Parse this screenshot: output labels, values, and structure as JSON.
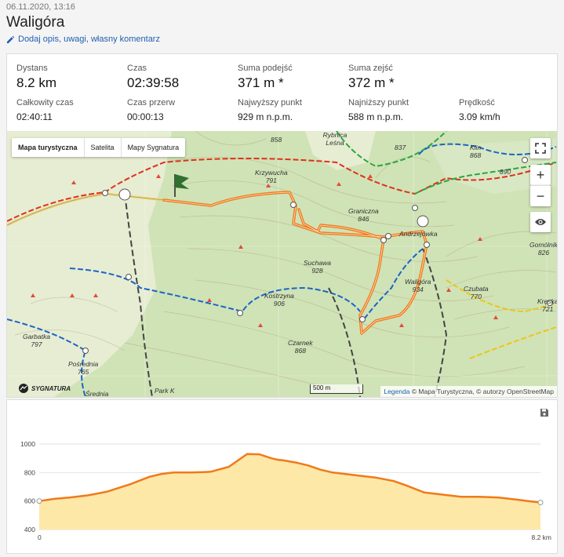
{
  "header": {
    "datetime": "06.11.2020, 13:16",
    "title": "Waligóra",
    "add_comment": "Dodaj opis, uwagi, własny komentarz"
  },
  "stats": {
    "distance": {
      "label": "Dystans",
      "value": "8.2 km"
    },
    "time": {
      "label": "Czas",
      "value": "02:39:58"
    },
    "ascent": {
      "label": "Suma podejść",
      "value": "371 m *"
    },
    "descent": {
      "label": "Suma zejść",
      "value": "372 m *"
    },
    "total_time": {
      "label": "Całkowity czas",
      "value": "02:40:11"
    },
    "break_time": {
      "label": "Czas przerw",
      "value": "00:00:13"
    },
    "highest": {
      "label": "Najwyższy punkt",
      "value": "929 m n.p.m."
    },
    "lowest": {
      "label": "Najniższy punkt",
      "value": "588 m n.p.m."
    },
    "speed": {
      "label": "Prędkość",
      "value": "3.09 km/h"
    }
  },
  "map": {
    "types": [
      "Mapa turystyczna",
      "Satelita",
      "Mapy Sygnatura"
    ],
    "active_type": "Mapa turystyczna",
    "controls": {
      "zoom_in": "+",
      "zoom_out": "−"
    },
    "scale": "500 m",
    "attribution_link": "Legenda",
    "attribution_text": "© Mapa Turystyczna, © autorzy OpenStreetMap",
    "watermark": "SYGNATURA",
    "places": [
      {
        "name": "Krzywucha",
        "elev": "791"
      },
      {
        "name": "Graniczna",
        "elev": "846"
      },
      {
        "name": "Suchawa",
        "elev": "928"
      },
      {
        "name": "Kostrzyna",
        "elev": "906"
      },
      {
        "name": "Waligóra",
        "elev": "934"
      },
      {
        "name": "Czarnek",
        "elev": "868"
      },
      {
        "name": "Czubata",
        "elev": "770"
      },
      {
        "name": "Garbatka",
        "elev": "797"
      },
      {
        "name": "Pośrednia",
        "elev": "765"
      },
      {
        "name": "Średnia",
        "elev": ""
      },
      {
        "name": "Klin",
        "elev": "868"
      },
      {
        "name": "Gomólnik",
        "elev": "826"
      },
      {
        "name": "Kręska",
        "elev": "721"
      },
      {
        "name": "Rybnica Leśna",
        "elev": ""
      },
      {
        "name": "",
        "elev": "858"
      },
      {
        "name": "",
        "elev": "837"
      },
      {
        "name": "",
        "elev": "890"
      },
      {
        "name": "Andrzejówka",
        "elev": ""
      },
      {
        "name": "Park K",
        "elev": ""
      }
    ],
    "track_color": "#f07a1a"
  },
  "chart_data": {
    "type": "area",
    "title": "",
    "xlabel": "",
    "ylabel": "",
    "x_tick_labels": [
      "0",
      "8.2 km"
    ],
    "y_ticks": [
      400,
      600,
      800,
      1000
    ],
    "ylim": [
      400,
      1000
    ],
    "xlim": [
      0,
      8.2
    ],
    "grid": true,
    "line_color": "#f07a1a",
    "fill_color": "#fde8a8",
    "series": [
      {
        "x": [
          0,
          0.25,
          0.5,
          0.8,
          1.1,
          1.5,
          1.8,
          2.0,
          2.2,
          2.5,
          2.8,
          3.1,
          3.4,
          3.6,
          3.8,
          3.9,
          4.0,
          4.2,
          4.4,
          4.6,
          4.8,
          5.0,
          5.2,
          5.5,
          5.8,
          6.0,
          6.3,
          6.6,
          6.9,
          7.2,
          7.5,
          7.8,
          8.0,
          8.2
        ],
        "y": [
          600,
          615,
          625,
          640,
          665,
          720,
          770,
          790,
          800,
          800,
          805,
          840,
          930,
          928,
          900,
          890,
          885,
          870,
          850,
          820,
          800,
          790,
          780,
          765,
          740,
          710,
          660,
          645,
          630,
          630,
          625,
          610,
          600,
          590
        ]
      }
    ]
  }
}
